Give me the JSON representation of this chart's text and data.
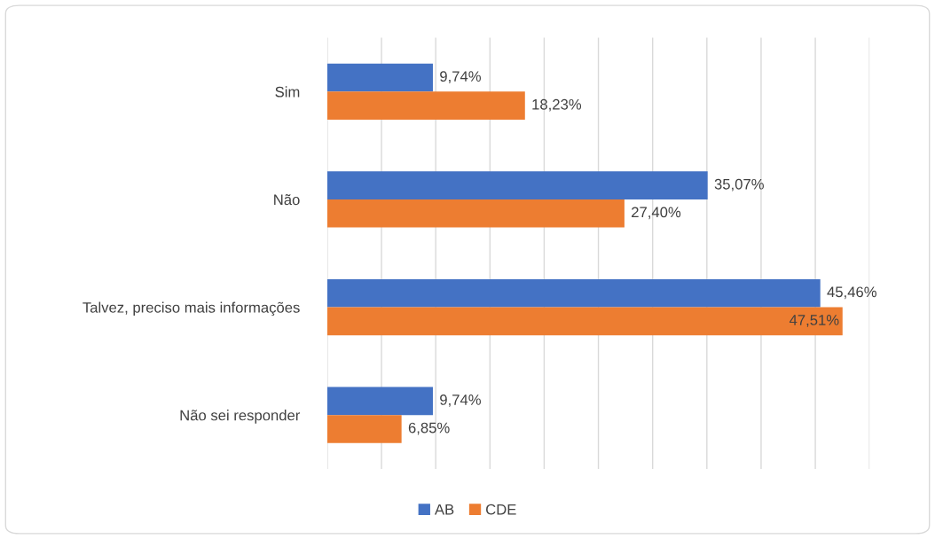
{
  "chart_data": {
    "type": "bar",
    "orientation": "horizontal",
    "categories": [
      "Sim",
      "Não",
      "Talvez, preciso mais informações",
      "Não sei responder"
    ],
    "series": [
      {
        "name": "AB",
        "color": "#4472c4",
        "values": [
          9.74,
          35.07,
          45.46,
          9.74
        ],
        "value_labels": [
          "9,74%",
          "35,07%",
          "45,46%",
          "9,74%"
        ]
      },
      {
        "name": "CDE",
        "color": "#ed7d31",
        "values": [
          18.23,
          27.4,
          47.51,
          6.85
        ],
        "value_labels": [
          "18,23%",
          "27,40%",
          "47,51%",
          "6,85%"
        ]
      }
    ],
    "xlim": [
      0,
      50
    ],
    "xticks": [
      {
        "value": 0,
        "label": null
      },
      {
        "value": 5,
        "label": null
      },
      {
        "value": 10,
        "label": null
      },
      {
        "value": 15,
        "label": null
      },
      {
        "value": 20,
        "label": null
      },
      {
        "value": 25,
        "label": null
      },
      {
        "value": 30,
        "label": null
      },
      {
        "value": 35,
        "label": null
      },
      {
        "value": 40,
        "label": null
      },
      {
        "value": 45,
        "label": null
      },
      {
        "value": 50,
        "label": null
      }
    ],
    "grid": "x",
    "legend": "bottom",
    "tick_labels": "y"
  }
}
